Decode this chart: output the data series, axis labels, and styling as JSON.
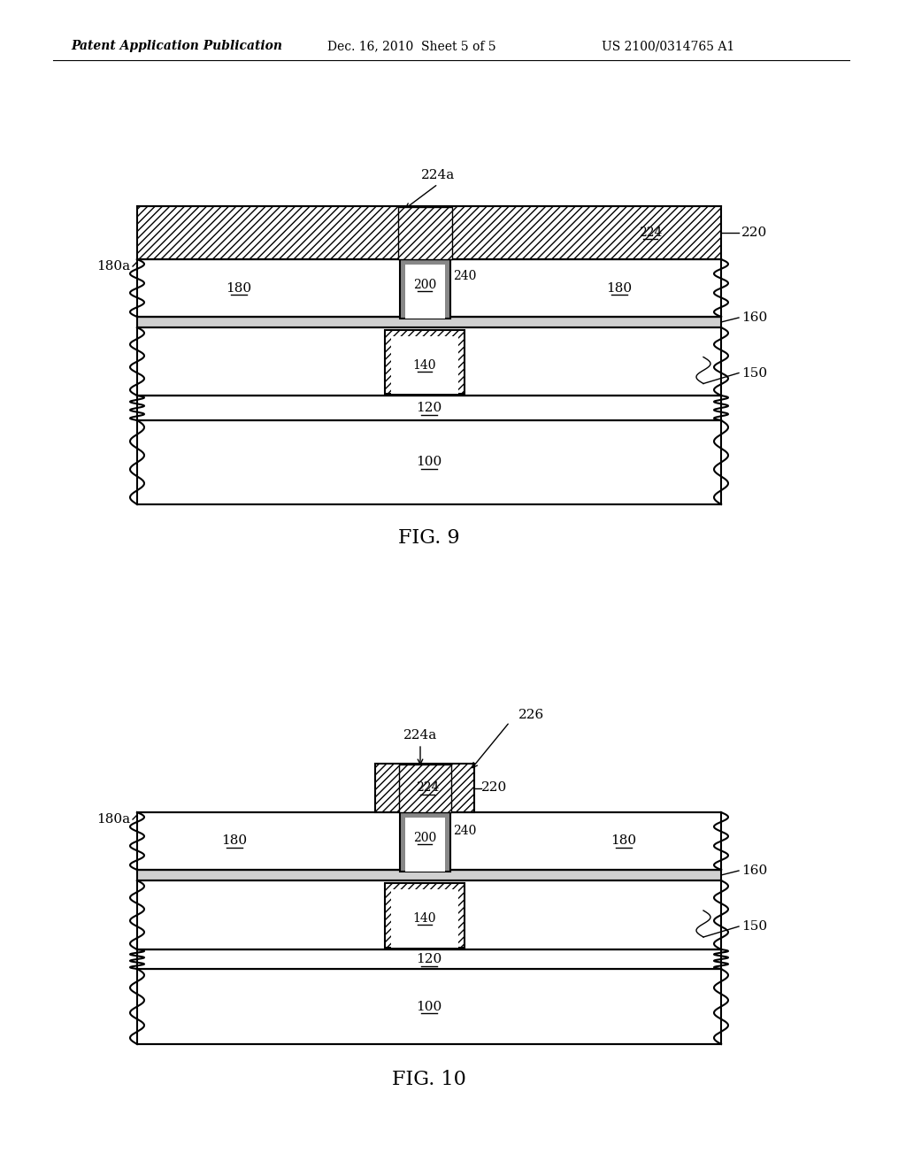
{
  "bg": "#ffffff",
  "header1": "Patent Application Publication",
  "header2": "Dec. 16, 2010  Sheet 5 of 5",
  "header3": "US 2100/0314765 A1",
  "fig9_label": "FIG. 9",
  "fig10_label": "FIG. 10",
  "lw": 1.5,
  "lw_thin": 1.0,
  "font_label": 11,
  "font_fig": 16,
  "font_header": 10
}
